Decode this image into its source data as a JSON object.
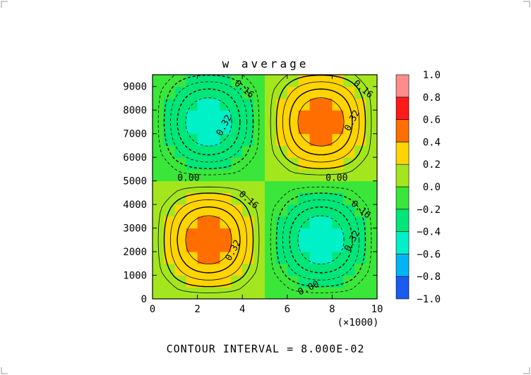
{
  "chart_data": {
    "type": "heatmap",
    "title": "w average",
    "xlabel": "",
    "ylabel": "",
    "x_multiplier_label": "(×1000)",
    "xlim": [
      0,
      10
    ],
    "ylim": [
      0,
      9500
    ],
    "x_ticks": [
      0,
      2,
      4,
      6,
      8,
      10
    ],
    "y_ticks": [
      0,
      1000,
      2000,
      3000,
      4000,
      5000,
      6000,
      7000,
      8000,
      9000
    ],
    "x_tick_labels": [
      "0",
      "2",
      "4",
      "6",
      "8",
      "10"
    ],
    "y_tick_labels": [
      "0",
      "1000",
      "2000",
      "3000",
      "4000",
      "5000",
      "6000",
      "7000",
      "8000",
      "9000"
    ],
    "field": {
      "formula": "w = 0.5 * sin(2*pi*x/10) * sin(2*pi*y/10000) with sign chosen so lower-left and upper-right cells are positive",
      "cells": [
        {
          "quadrant": "lower-left",
          "center_x": 2.5,
          "center_y": 2500,
          "extreme": 0.5
        },
        {
          "quadrant": "upper-right",
          "center_x": 7.5,
          "center_y": 7500,
          "extreme": 0.5
        },
        {
          "quadrant": "upper-left",
          "center_x": 2.5,
          "center_y": 7500,
          "extreme": -0.5
        },
        {
          "quadrant": "lower-right",
          "center_x": 7.5,
          "center_y": 2500,
          "extreme": -0.5
        }
      ]
    },
    "contour_interval": 0.08,
    "contour_labels": [
      {
        "text": "0.16",
        "x": 4.0,
        "y": 8800,
        "angle": 40
      },
      {
        "text": "0.32",
        "x": 3.3,
        "y": 7300,
        "angle": -62
      },
      {
        "text": "0.16",
        "x": 9.3,
        "y": 8800,
        "angle": 40
      },
      {
        "text": "0.32",
        "x": 9.0,
        "y": 7500,
        "angle": -62
      },
      {
        "text": "0.00",
        "x": 1.6,
        "y": 5000,
        "angle": 0
      },
      {
        "text": "0.00",
        "x": 8.2,
        "y": 5000,
        "angle": 0
      },
      {
        "text": "0.16",
        "x": 4.2,
        "y": 4100,
        "angle": 40
      },
      {
        "text": "0.32",
        "x": 3.7,
        "y": 2000,
        "angle": -62
      },
      {
        "text": "0.16",
        "x": 9.2,
        "y": 3700,
        "angle": 40
      },
      {
        "text": "0.32",
        "x": 9.0,
        "y": 2400,
        "angle": -62
      },
      {
        "text": "0.00",
        "x": 7.0,
        "y": 350,
        "angle": -25
      }
    ],
    "colorbar": {
      "levels": [
        -1.0,
        -0.8,
        -0.6,
        -0.4,
        -0.2,
        0.0,
        0.2,
        0.4,
        0.6,
        0.8,
        1.0
      ],
      "labels": [
        "1.0",
        "0.8",
        "0.6",
        "0.4",
        "0.2",
        "0.0",
        "−0.2",
        "−0.4",
        "−0.6",
        "−0.8",
        "−1.0"
      ],
      "colors": [
        "#1a5cf0",
        "#00b4f5",
        "#00f0c8",
        "#00e678",
        "#3ae63a",
        "#a4e61e",
        "#ffd400",
        "#ff6e00",
        "#ff1a1a",
        "#ff8c8c"
      ]
    },
    "footer": "CONTOUR INTERVAL = 8.000E-02"
  }
}
